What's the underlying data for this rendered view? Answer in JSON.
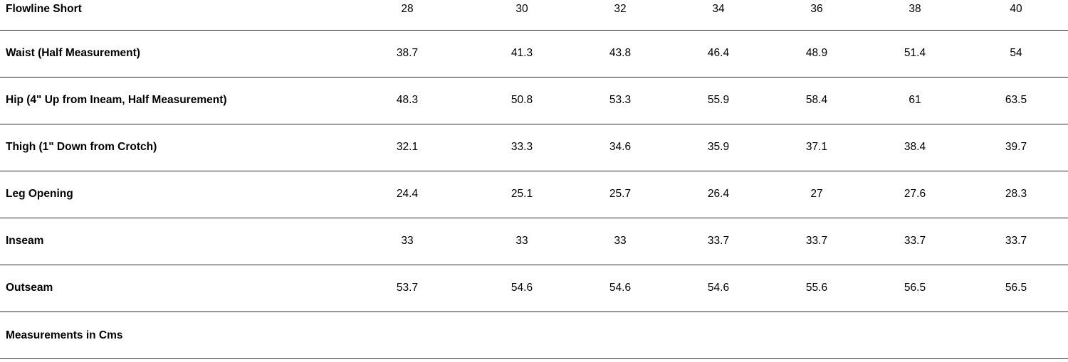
{
  "table": {
    "title": "Flowline Short",
    "sizes": [
      "28",
      "30",
      "32",
      "34",
      "36",
      "38",
      "40"
    ],
    "rows": [
      {
        "label": "Waist (Half Measurement)",
        "values": [
          "38.7",
          "41.3",
          "43.8",
          "46.4",
          "48.9",
          "51.4",
          "54"
        ]
      },
      {
        "label": "Hip (4\" Up from Ineam, Half Measurement)",
        "values": [
          "48.3",
          "50.8",
          "53.3",
          "55.9",
          "58.4",
          "61",
          "63.5"
        ]
      },
      {
        "label": "Thigh (1\" Down from Crotch)",
        "values": [
          "32.1",
          "33.3",
          "34.6",
          "35.9",
          "37.1",
          "38.4",
          "39.7"
        ]
      },
      {
        "label": "Leg Opening",
        "values": [
          "24.4",
          "25.1",
          "25.7",
          "26.4",
          "27",
          "27.6",
          "28.3"
        ]
      },
      {
        "label": "Inseam",
        "values": [
          "33",
          "33",
          "33",
          "33.7",
          "33.7",
          "33.7",
          "33.7"
        ]
      },
      {
        "label": "Outseam",
        "values": [
          "53.7",
          "54.6",
          "54.6",
          "54.6",
          "55.6",
          "56.5",
          "56.5"
        ]
      }
    ],
    "footer_note": "Measurements in Cms"
  }
}
